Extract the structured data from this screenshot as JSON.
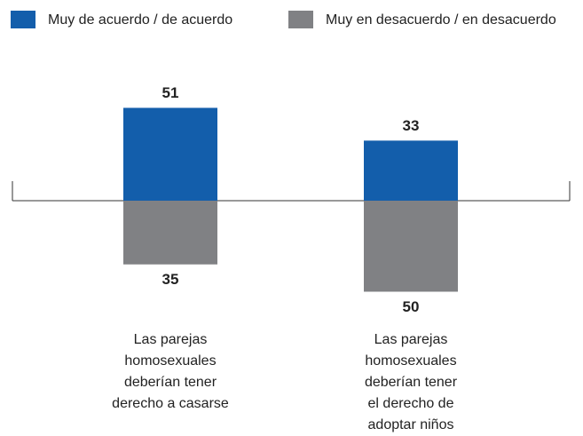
{
  "chart_data": {
    "type": "bar",
    "categories": [
      "Las parejas\nhomosexuales\ndeberían tener\nderecho a casarse",
      "Las parejas\nhomosexuales\ndeberían tener\nel derecho de\nadoptar niños"
    ],
    "series": [
      {
        "name": "Muy de acuerdo / de acuerdo",
        "color": "#135eab",
        "values": [
          51,
          33
        ]
      },
      {
        "name": "Muy en desacuerdo / en desacuerdo",
        "color": "#808184",
        "values": [
          -35,
          -50
        ],
        "value_labels": [
          "35",
          "50"
        ]
      }
    ]
  }
}
